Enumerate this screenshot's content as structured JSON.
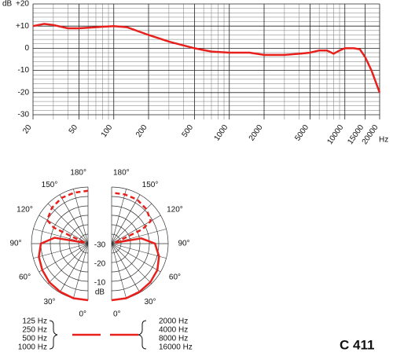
{
  "chart_data": [
    {
      "type": "line",
      "ylabel": "dB",
      "xlabel": "Hz",
      "xscale": "log",
      "xlim": [
        20,
        20000
      ],
      "ylim": [
        -30,
        20
      ],
      "xticks": [
        20,
        50,
        100,
        200,
        500,
        1000,
        2000,
        5000,
        10000,
        15000,
        20000
      ],
      "xminor": [
        30,
        40,
        60,
        70,
        80,
        90,
        300,
        400,
        600,
        700,
        800,
        900,
        3000,
        4000,
        6000,
        7000,
        8000,
        9000
      ],
      "yticks": [
        {
          "value": 20,
          "label": "+20"
        },
        {
          "value": 10,
          "label": "+10"
        },
        0,
        -10,
        -20,
        -30
      ],
      "yminor": [
        18,
        16,
        14,
        12,
        8,
        6,
        4,
        2,
        -2,
        -4,
        -6,
        -8,
        -12,
        -14,
        -16,
        -18,
        -22,
        -24,
        -26,
        -28
      ],
      "grid": true,
      "series": [
        {
          "color": "#e8201c",
          "x": [
            20,
            25,
            30,
            40,
            50,
            70,
            100,
            130,
            200,
            300,
            500,
            700,
            1000,
            1500,
            2000,
            3000,
            4000,
            5000,
            6000,
            7000,
            8000,
            9000,
            10000,
            12000,
            13500,
            15000,
            17000,
            20000
          ],
          "values": [
            10,
            11,
            10.5,
            9,
            9,
            9.5,
            10,
            9.5,
            6,
            3,
            0,
            -1.5,
            -2,
            -2,
            -3,
            -3,
            -2.5,
            -2,
            -1,
            -1,
            -2.5,
            -1,
            0,
            0,
            -0.5,
            -4,
            -10,
            -20
          ]
        }
      ]
    },
    {
      "type": "polar",
      "rlim": [
        -30,
        0
      ],
      "rticks": [
        -30,
        -20,
        -10
      ],
      "rlabel": "dB",
      "rminor": [
        -25,
        -15,
        -5,
        0
      ],
      "angle_ticks": [
        {
          "value": 180,
          "label": "180°"
        },
        {
          "value": 150,
          "label": "150°"
        },
        {
          "value": 120,
          "label": "120°"
        },
        {
          "value": 90,
          "label": "90°"
        },
        {
          "value": 60,
          "label": "60°"
        },
        {
          "value": 30,
          "label": "30°"
        },
        {
          "value": 0,
          "label": "0°"
        }
      ],
      "angle_minor": [
        15,
        45,
        75,
        105,
        135,
        165
      ],
      "color": "#e8201c",
      "left": {
        "names": [
          "125 Hz",
          "250 Hz",
          "500 Hz",
          "1000 Hz"
        ],
        "series": [
          {
            "style": "solid",
            "angles": [
              0,
              15,
              30,
              45,
              60,
              75,
              90,
              100,
              105
            ],
            "values": [
              0,
              0,
              -0.5,
              -1,
              -2,
              -3,
              -5,
              -12,
              -28
            ]
          },
          {
            "style": "dashed",
            "angles": [
              105,
              115,
              120,
              135,
              150,
              165,
              180
            ],
            "values": [
              -28,
              -10,
              -5,
              -3,
              -2,
              -2,
              -2
            ]
          }
        ]
      },
      "right": {
        "names": [
          "2000 Hz",
          "4000 Hz",
          "8000 Hz",
          "16000 Hz"
        ],
        "series": [
          {
            "style": "solid",
            "angles": [
              0,
              15,
              30,
              45,
              60,
              75,
              90,
              100,
              105
            ],
            "values": [
              0,
              0,
              -0.5,
              -1,
              -2,
              -4,
              -7,
              -14,
              -28
            ]
          },
          {
            "style": "dashed",
            "angles": [
              105,
              115,
              120,
              135,
              150,
              165,
              180
            ],
            "values": [
              -28,
              -12,
              -6,
              -4,
              -3,
              -3,
              -3
            ]
          }
        ]
      },
      "model": "C 411"
    }
  ]
}
